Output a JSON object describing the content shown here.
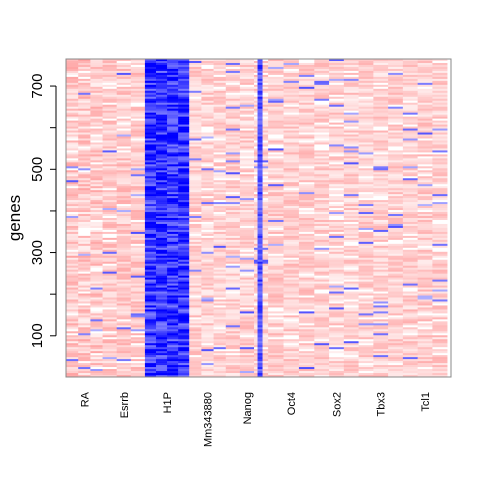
{
  "chart_data": {
    "type": "heatmap",
    "title": "",
    "xlabel": "",
    "ylabel": "genes",
    "columns": [
      "RA",
      "Esrrb",
      "H1P",
      "Mm343880",
      "Nanog",
      "Oct4",
      "Sox2",
      "Tbx3",
      "Tcl1"
    ],
    "column_proportions": [
      0.095,
      0.11,
      0.115,
      0.095,
      0.11,
      0.12,
      0.115,
      0.115,
      0.115
    ],
    "n_genes": 765,
    "ylim": [
      1,
      765
    ],
    "y_ticks": [
      100,
      300,
      500,
      700
    ],
    "y_minor_ticks": [
      200,
      400,
      600
    ],
    "columns_profile": [
      {
        "name": "RA",
        "base": "pale-red",
        "mean": 0.35,
        "spread": 0.25
      },
      {
        "name": "Esrrb",
        "base": "pale-red",
        "mean": 0.35,
        "spread": 0.2
      },
      {
        "name": "H1P",
        "base": "blue",
        "mean": -0.8,
        "spread": 0.3
      },
      {
        "name": "Mm343880",
        "base": "pale-red",
        "mean": 0.3,
        "spread": 0.2
      },
      {
        "name": "Nanog",
        "base": "pale-red-with-blue-stripe",
        "mean": 0.3,
        "spread": 0.2
      },
      {
        "name": "Oct4",
        "base": "pale-red",
        "mean": 0.32,
        "spread": 0.2
      },
      {
        "name": "Sox2",
        "base": "pale-red",
        "mean": 0.3,
        "spread": 0.2
      },
      {
        "name": "Tbx3",
        "base": "pale-red",
        "mean": 0.3,
        "spread": 0.2
      },
      {
        "name": "Tcl1",
        "base": "pale-red",
        "mean": 0.32,
        "spread": 0.2
      }
    ],
    "color_scale": {
      "low": "#0000ff",
      "mid": "#ffffff",
      "high": "#ff6464"
    },
    "grid": false,
    "legend": "none"
  }
}
